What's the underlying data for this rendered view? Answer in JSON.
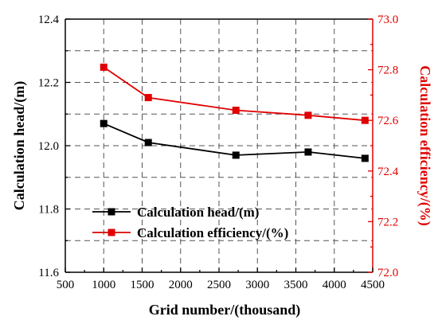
{
  "chart_data": {
    "type": "line",
    "xlabel": "Grid number/(thousand)",
    "xlim": [
      500,
      4500
    ],
    "xticks": [
      500,
      1000,
      1500,
      2000,
      2500,
      3000,
      3500,
      4000,
      4500
    ],
    "ylabel": "Calculation head/(m)",
    "ylim": [
      11.6,
      12.4
    ],
    "yticks": [
      11.6,
      11.8,
      12.0,
      12.2,
      12.4
    ],
    "y2label": "Calculation efficiency/(%)",
    "y2lim": [
      72.0,
      73.0
    ],
    "y2ticks": [
      72.0,
      72.2,
      72.4,
      72.6,
      72.8,
      73.0
    ],
    "grid": true,
    "legend_position": "lower-center",
    "series": [
      {
        "name": "Calculation head/(m)",
        "axis": "left",
        "color": "#000000",
        "x": [
          1000,
          1580,
          2720,
          3660,
          4400
        ],
        "y": [
          12.07,
          12.01,
          11.97,
          11.98,
          11.96
        ]
      },
      {
        "name": "Calculation efficiency/(%)",
        "axis": "right",
        "color": "#e00000",
        "x": [
          1000,
          1580,
          2720,
          3660,
          4400
        ],
        "y": [
          72.81,
          72.69,
          72.64,
          72.62,
          72.6
        ]
      }
    ]
  }
}
